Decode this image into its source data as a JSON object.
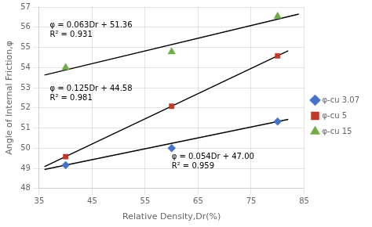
{
  "chart_data": {
    "type": "scatter",
    "xlabel": "Relative Density,Dr(%)",
    "ylabel": "Angle of Internal Friction,φ",
    "xlim": [
      35,
      85
    ],
    "ylim": [
      48,
      57
    ],
    "xticks": [
      35,
      45,
      55,
      65,
      75,
      85
    ],
    "yticks": [
      48,
      49,
      50,
      51,
      52,
      53,
      54,
      55,
      56,
      57
    ],
    "grid": true,
    "legend": "right",
    "series": [
      {
        "name": "φ-cu 3.07",
        "color": "#4472C4",
        "marker": "diamond",
        "x": [
          40,
          60,
          80
        ],
        "values": [
          49.16,
          50.0,
          51.32
        ],
        "trend": {
          "x": [
            36,
            82
          ],
          "values": [
            48.944,
            51.428
          ],
          "color": "#000000"
        }
      },
      {
        "name": "φ-cu 5",
        "color": "#C0392B",
        "marker": "square",
        "x": [
          40,
          60,
          80
        ],
        "values": [
          49.58,
          52.08,
          54.58
        ],
        "trend": {
          "x": [
            36,
            82
          ],
          "values": [
            49.08,
            54.83
          ],
          "color": "#000000"
        }
      },
      {
        "name": "φ-cu 15",
        "color": "#70AD47",
        "marker": "triangle",
        "x": [
          40,
          60,
          80
        ],
        "values": [
          54.0,
          54.78,
          56.54
        ],
        "trend": {
          "x": [
            36,
            84
          ],
          "values": [
            53.628,
            56.652
          ],
          "color": "#000000"
        }
      }
    ],
    "annotations": [
      {
        "text": "φ = 0.054Dr + 47.00\nR² = 0.959",
        "x": 60,
        "y": 49.35
      },
      {
        "text": "φ = 0.125Dr + 44.58\nR² = 0.981",
        "x": 37,
        "y": 52.7
      },
      {
        "text": "φ = 0.063Dr + 51.36\nR² = 0.931",
        "x": 37,
        "y": 55.85
      }
    ]
  }
}
